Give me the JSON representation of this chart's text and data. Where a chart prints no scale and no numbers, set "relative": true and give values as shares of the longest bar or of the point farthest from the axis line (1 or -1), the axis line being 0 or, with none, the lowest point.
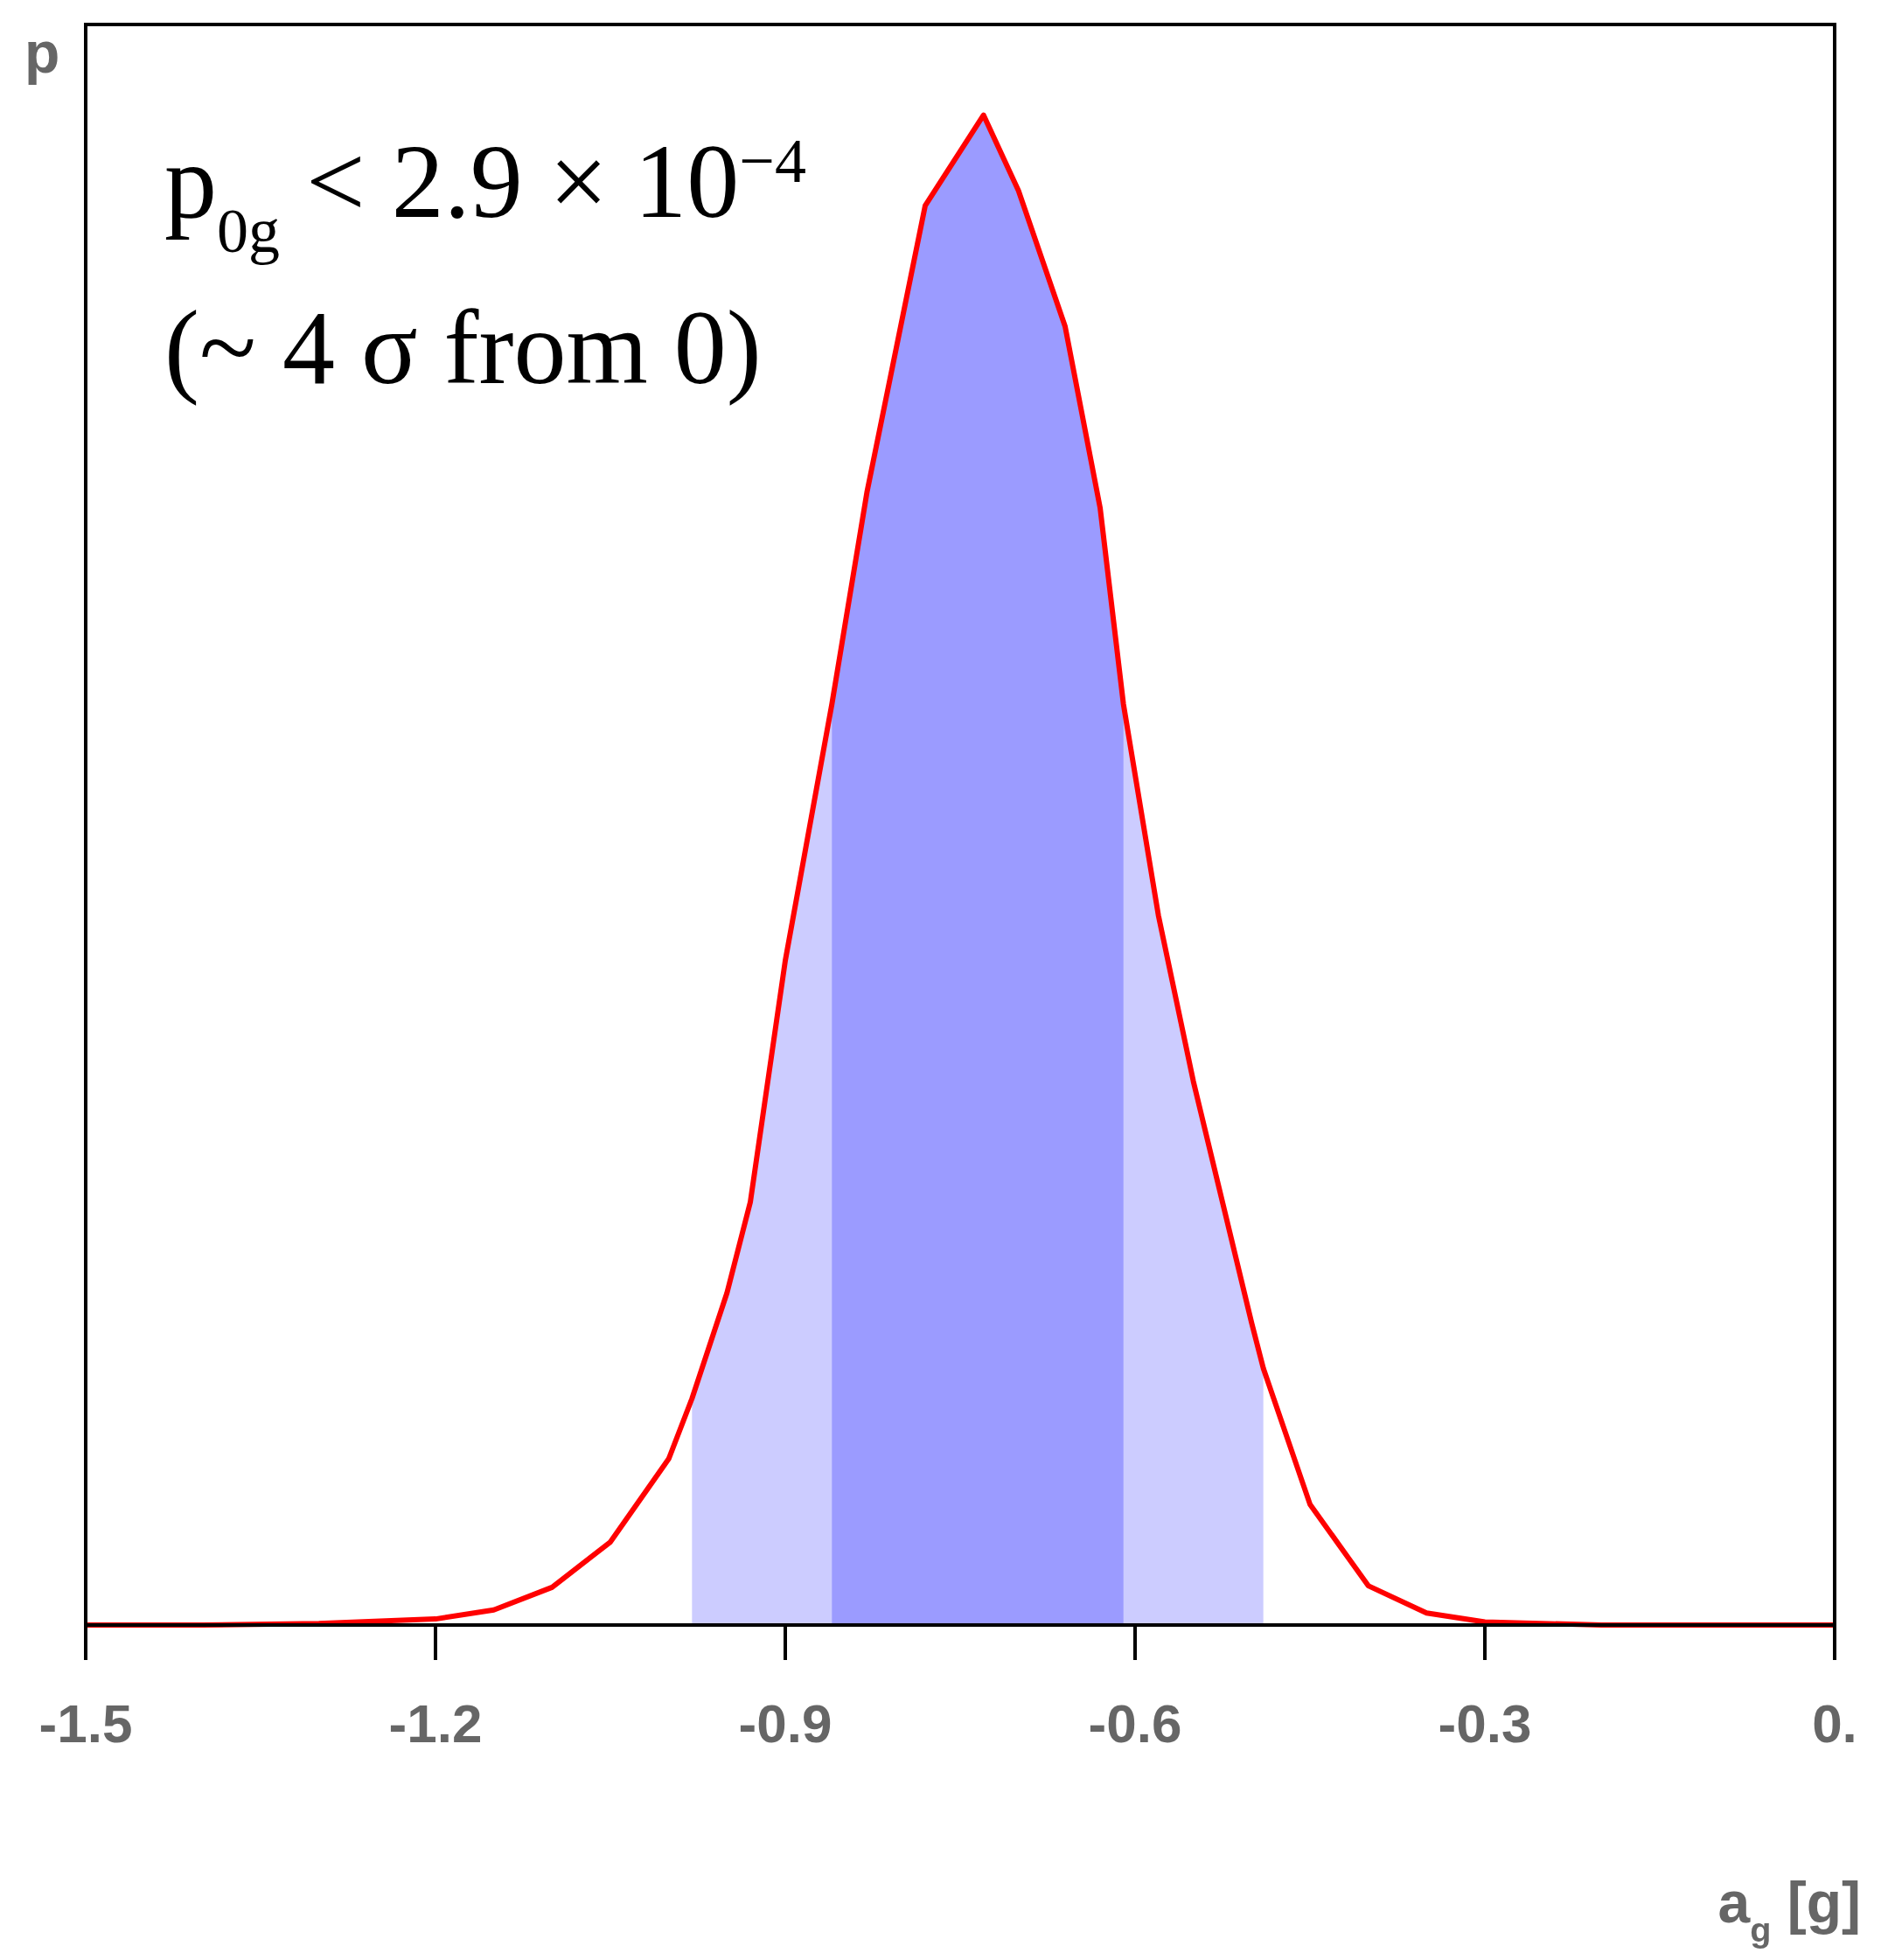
{
  "chart_data": {
    "type": "line",
    "relative": true,
    "ylabel": "p",
    "xlabel": "a$_{g}$[g]",
    "x": [
      -1.5,
      -1.4,
      -1.3,
      -1.2,
      -1.15,
      -1.1,
      -1.05,
      -1.0,
      -0.98,
      -0.95,
      -0.93,
      -0.9,
      -0.86,
      -0.83,
      -0.78,
      -0.73,
      -0.7,
      -0.66,
      -0.63,
      -0.61,
      -0.58,
      -0.55,
      -0.5,
      -0.49,
      -0.45,
      -0.4,
      -0.35,
      -0.3,
      -0.2,
      -0.1,
      0
    ],
    "series": [
      {
        "color": "#ff0000",
        "values": [
          0,
          0,
          0.001,
          0.004,
          0.01,
          0.025,
          0.055,
          0.11,
          0.15,
          0.22,
          0.28,
          0.44,
          0.61,
          0.75,
          0.94,
          1,
          0.95,
          0.86,
          0.74,
          0.61,
          0.47,
          0.36,
          0.2,
          0.17,
          0.08,
          0.026,
          0.008,
          0.002,
          0,
          0,
          0
        ]
      }
    ],
    "xlim": [
      -1.5,
      0
    ],
    "xticks": [
      -1.5,
      -1.2,
      -0.9,
      -0.6,
      -0.3,
      {
        "value": 0,
        "label": "0."
      }
    ],
    "bands": [
      {
        "axis": "x",
        "from": -0.98,
        "to": -0.49,
        "color": "#ccccff"
      },
      {
        "axis": "x",
        "from": -0.86,
        "to": -0.61,
        "color": "#9b9bff"
      }
    ],
    "annotations": [
      "p$_{0g}$ < 2.9 × 10$^{−4}$",
      "(~ 4 σ from 0)"
    ],
    "grid": false,
    "legend": false
  }
}
